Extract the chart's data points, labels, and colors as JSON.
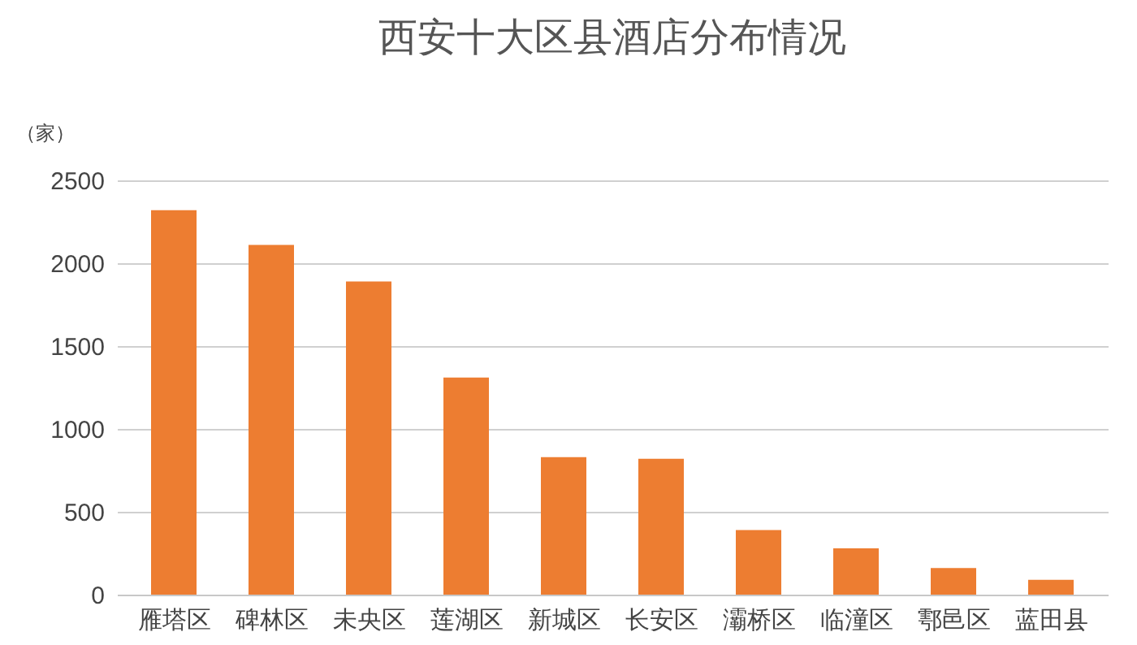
{
  "chart_data": {
    "type": "bar",
    "title": "西安十大区县酒店分布情况",
    "ylabel": "（家）",
    "categories": [
      "雁塔区",
      "碑林区",
      "未央区",
      "莲湖区",
      "新城区",
      "长安区",
      "灞桥区",
      "临潼区",
      "鄠邑区",
      "蓝田县"
    ],
    "values": [
      2320,
      2110,
      1890,
      1310,
      830,
      820,
      390,
      280,
      160,
      90
    ],
    "color": "#ed7d31",
    "ylim": [
      0,
      2500
    ],
    "yticks": [
      0,
      500,
      1000,
      1500,
      2000,
      2500
    ],
    "grid": "y"
  }
}
